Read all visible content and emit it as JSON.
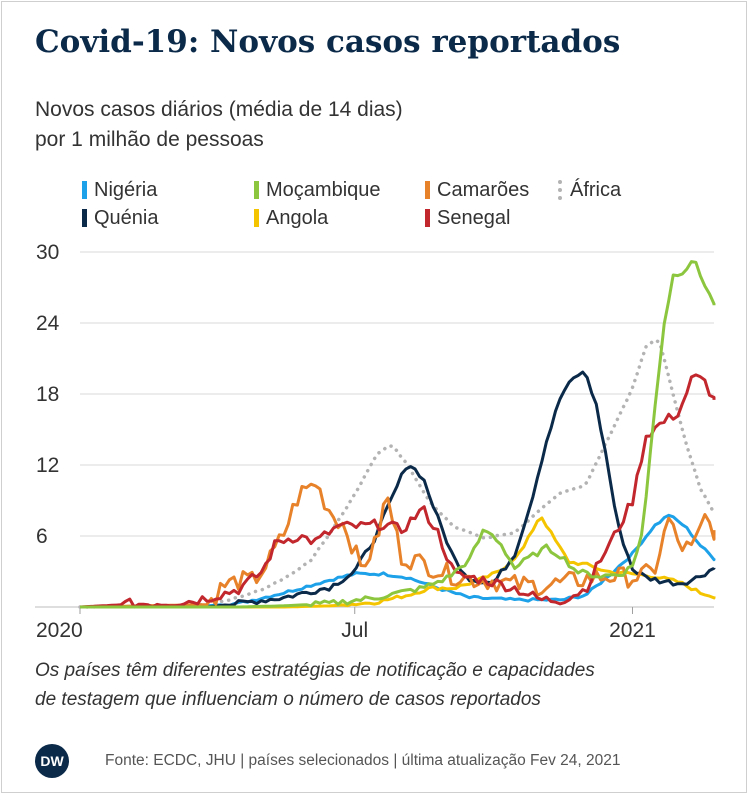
{
  "title": "Covid-19: Novos casos reportados",
  "subtitle_line1": "Novos casos diários (média de 14 dias)",
  "subtitle_line2": "por 1 milhão de pessoas",
  "note_line1": "Os países têm diferentes estratégias de notificação e capacidades",
  "note_line2": "de testagem que influenciam o número de casos reportados",
  "logo_text": "DW",
  "source": "Fonte: ECDC, JHU | países selecionados | última atualização Fev 24, 2021",
  "chart_data": {
    "type": "line",
    "title": "Covid-19: Novos casos reportados",
    "ylabel": "Novos casos diários (média de 14 dias) por 1 milhão de pessoas",
    "ylim": [
      0,
      30
    ],
    "yticks": [
      "6",
      "12",
      "18",
      "24",
      "30"
    ],
    "xlim": [
      "2020-01-01",
      "2021-02-24"
    ],
    "xticks": [
      {
        "date": "2020-01-01",
        "label": "2020"
      },
      {
        "date": "2020-07-01",
        "label": "Jul"
      },
      {
        "date": "2021-01-01",
        "label": "2021"
      }
    ],
    "grid": true,
    "legend_position": "top",
    "series": [
      {
        "name": "Nigéria",
        "color": "#1da1e8",
        "style": "solid",
        "points": [
          [
            "2020-01-01",
            0
          ],
          [
            "2020-03-15",
            0
          ],
          [
            "2020-04-15",
            0.3
          ],
          [
            "2020-05-15",
            1.2
          ],
          [
            "2020-06-15",
            2.3
          ],
          [
            "2020-07-01",
            2.8
          ],
          [
            "2020-07-20",
            2.8
          ],
          [
            "2020-08-05",
            2.5
          ],
          [
            "2020-08-25",
            1.6
          ],
          [
            "2020-09-15",
            0.8
          ],
          [
            "2020-10-15",
            0.6
          ],
          [
            "2020-11-15",
            0.6
          ],
          [
            "2020-12-01",
            1.0
          ],
          [
            "2020-12-15",
            2.5
          ],
          [
            "2021-01-01",
            4.5
          ],
          [
            "2021-01-15",
            6.8
          ],
          [
            "2021-01-25",
            7.8
          ],
          [
            "2021-02-05",
            6.8
          ],
          [
            "2021-02-15",
            5.2
          ],
          [
            "2021-02-24",
            4.1
          ]
        ]
      },
      {
        "name": "Moçambique",
        "color": "#8cc63f",
        "style": "solid",
        "points": [
          [
            "2020-01-01",
            0
          ],
          [
            "2020-04-15",
            0
          ],
          [
            "2020-05-15",
            0.1
          ],
          [
            "2020-06-15",
            0.3
          ],
          [
            "2020-07-15",
            0.8
          ],
          [
            "2020-08-15",
            1.6
          ],
          [
            "2020-09-01",
            2.5
          ],
          [
            "2020-09-15",
            4.0
          ],
          [
            "2020-09-25",
            6.6
          ],
          [
            "2020-10-05",
            5.5
          ],
          [
            "2020-10-15",
            3.3
          ],
          [
            "2020-10-25",
            4.2
          ],
          [
            "2020-11-05",
            5.0
          ],
          [
            "2020-11-15",
            4.3
          ],
          [
            "2020-11-25",
            3.0
          ],
          [
            "2020-12-10",
            2.6
          ],
          [
            "2020-12-25",
            2.8
          ],
          [
            "2021-01-01",
            3.5
          ],
          [
            "2021-01-08",
            6.5
          ],
          [
            "2021-01-15",
            16.0
          ],
          [
            "2021-01-22",
            24.0
          ],
          [
            "2021-01-28",
            28.0
          ],
          [
            "2021-02-05",
            28.5
          ],
          [
            "2021-02-10",
            29.5
          ],
          [
            "2021-02-15",
            28.0
          ],
          [
            "2021-02-20",
            26.8
          ],
          [
            "2021-02-24",
            25.5
          ]
        ]
      },
      {
        "name": "Camarões",
        "color": "#e8822a",
        "style": "solid",
        "points": [
          [
            "2020-01-01",
            0
          ],
          [
            "2020-03-25",
            0.2
          ],
          [
            "2020-04-05",
            1.8
          ],
          [
            "2020-04-15",
            2.2
          ],
          [
            "2020-04-25",
            2.2
          ],
          [
            "2020-05-05",
            3.8
          ],
          [
            "2020-05-15",
            6.2
          ],
          [
            "2020-05-25",
            9.5
          ],
          [
            "2020-06-05",
            10.5
          ],
          [
            "2020-06-15",
            8.0
          ],
          [
            "2020-06-25",
            6.8
          ],
          [
            "2020-07-05",
            3.3
          ],
          [
            "2020-07-15",
            5.3
          ],
          [
            "2020-07-22",
            9.5
          ],
          [
            "2020-08-01",
            4.3
          ],
          [
            "2020-08-15",
            3.7
          ],
          [
            "2020-09-01",
            2.8
          ],
          [
            "2020-09-15",
            2.4
          ],
          [
            "2020-10-01",
            2.2
          ],
          [
            "2020-10-15",
            1.9
          ],
          [
            "2020-11-01",
            1.8
          ],
          [
            "2020-11-15",
            2.0
          ],
          [
            "2020-12-01",
            2.4
          ],
          [
            "2020-12-15",
            2.6
          ],
          [
            "2021-01-01",
            2.5
          ],
          [
            "2021-01-15",
            2.9
          ],
          [
            "2021-01-25",
            7.4
          ],
          [
            "2021-02-01",
            5.2
          ],
          [
            "2021-02-10",
            4.8
          ],
          [
            "2021-02-18",
            7.5
          ],
          [
            "2021-02-24",
            6.5
          ]
        ]
      },
      {
        "name": "África",
        "color": "#b3b3b3",
        "style": "dotted",
        "points": [
          [
            "2020-01-01",
            0
          ],
          [
            "2020-03-15",
            0.1
          ],
          [
            "2020-04-01",
            0.4
          ],
          [
            "2020-04-15",
            0.8
          ],
          [
            "2020-05-01",
            1.5
          ],
          [
            "2020-05-15",
            2.4
          ],
          [
            "2020-06-01",
            3.8
          ],
          [
            "2020-06-15",
            6.3
          ],
          [
            "2020-07-01",
            9.5
          ],
          [
            "2020-07-15",
            12.8
          ],
          [
            "2020-07-25",
            13.8
          ],
          [
            "2020-08-05",
            12.0
          ],
          [
            "2020-08-20",
            8.8
          ],
          [
            "2020-09-05",
            6.8
          ],
          [
            "2020-09-25",
            5.8
          ],
          [
            "2020-10-15",
            6.3
          ],
          [
            "2020-11-01",
            8.2
          ],
          [
            "2020-11-15",
            9.7
          ],
          [
            "2020-12-01",
            10.3
          ],
          [
            "2020-12-15",
            14.0
          ],
          [
            "2021-01-01",
            18.5
          ],
          [
            "2021-01-10",
            22.0
          ],
          [
            "2021-01-18",
            22.8
          ],
          [
            "2021-01-25",
            19.5
          ],
          [
            "2021-02-05",
            14.0
          ],
          [
            "2021-02-15",
            10.0
          ],
          [
            "2021-02-24",
            8.0
          ]
        ]
      },
      {
        "name": "Quénia",
        "color": "#0b2a4a",
        "style": "solid",
        "points": [
          [
            "2020-01-01",
            0
          ],
          [
            "2020-03-25",
            0
          ],
          [
            "2020-04-15",
            0.3
          ],
          [
            "2020-05-15",
            0.8
          ],
          [
            "2020-06-15",
            1.7
          ],
          [
            "2020-07-01",
            3.0
          ],
          [
            "2020-07-15",
            6.0
          ],
          [
            "2020-07-25",
            9.0
          ],
          [
            "2020-08-05",
            12.2
          ],
          [
            "2020-08-15",
            11.0
          ],
          [
            "2020-08-25",
            7.5
          ],
          [
            "2020-09-05",
            4.0
          ],
          [
            "2020-09-15",
            2.4
          ],
          [
            "2020-10-01",
            2.0
          ],
          [
            "2020-10-15",
            4.5
          ],
          [
            "2020-10-25",
            8.5
          ],
          [
            "2020-11-05",
            14.0
          ],
          [
            "2020-11-15",
            18.0
          ],
          [
            "2020-11-25",
            19.6
          ],
          [
            "2020-12-01",
            19.8
          ],
          [
            "2020-12-08",
            17.0
          ],
          [
            "2020-12-15",
            12.5
          ],
          [
            "2020-12-22",
            7.0
          ],
          [
            "2021-01-01",
            3.2
          ],
          [
            "2021-01-10",
            2.5
          ],
          [
            "2021-01-20",
            2.2
          ],
          [
            "2021-02-01",
            2.0
          ],
          [
            "2021-02-10",
            2.3
          ],
          [
            "2021-02-24",
            3.3
          ]
        ]
      },
      {
        "name": "Angola",
        "color": "#f5c400",
        "style": "solid",
        "points": [
          [
            "2020-01-01",
            0
          ],
          [
            "2020-05-15",
            0
          ],
          [
            "2020-06-15",
            0.1
          ],
          [
            "2020-07-15",
            0.4
          ],
          [
            "2020-08-05",
            1.0
          ],
          [
            "2020-08-20",
            1.6
          ],
          [
            "2020-09-05",
            1.6
          ],
          [
            "2020-09-20",
            2.2
          ],
          [
            "2020-10-05",
            3.0
          ],
          [
            "2020-10-20",
            4.8
          ],
          [
            "2020-11-01",
            7.8
          ],
          [
            "2020-11-10",
            5.8
          ],
          [
            "2020-11-20",
            3.8
          ],
          [
            "2020-12-01",
            3.6
          ],
          [
            "2020-12-15",
            3.0
          ],
          [
            "2021-01-01",
            2.8
          ],
          [
            "2021-01-15",
            2.6
          ],
          [
            "2021-02-01",
            2.1
          ],
          [
            "2021-02-15",
            1.2
          ],
          [
            "2021-02-24",
            0.9
          ]
        ]
      },
      {
        "name": "Senegal",
        "color": "#c1272d",
        "style": "solid",
        "points": [
          [
            "2020-01-01",
            0
          ],
          [
            "2020-03-15",
            0.5
          ],
          [
            "2020-04-01",
            1.0
          ],
          [
            "2020-04-15",
            1.5
          ],
          [
            "2020-05-01",
            3.0
          ],
          [
            "2020-05-10",
            5.5
          ],
          [
            "2020-05-25",
            6.0
          ],
          [
            "2020-06-05",
            5.5
          ],
          [
            "2020-06-20",
            6.8
          ],
          [
            "2020-07-05",
            6.8
          ],
          [
            "2020-07-20",
            7.0
          ],
          [
            "2020-08-01",
            6.5
          ],
          [
            "2020-08-15",
            8.3
          ],
          [
            "2020-08-25",
            6.3
          ],
          [
            "2020-09-05",
            2.7
          ],
          [
            "2020-09-25",
            2.3
          ],
          [
            "2020-10-15",
            1.6
          ],
          [
            "2020-11-01",
            0.6
          ],
          [
            "2020-11-15",
            0.6
          ],
          [
            "2020-12-01",
            1.5
          ],
          [
            "2020-12-10",
            3.8
          ],
          [
            "2020-12-20",
            6.0
          ],
          [
            "2021-01-01",
            9.0
          ],
          [
            "2021-01-10",
            14.5
          ],
          [
            "2021-01-20",
            15.5
          ],
          [
            "2021-02-01",
            16.5
          ],
          [
            "2021-02-10",
            19.5
          ],
          [
            "2021-02-18",
            19.0
          ],
          [
            "2021-02-24",
            17.5
          ]
        ]
      }
    ]
  }
}
